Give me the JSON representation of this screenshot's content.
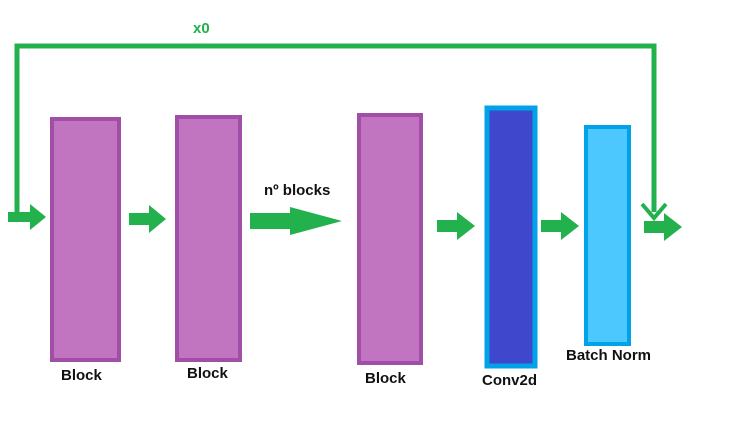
{
  "skip_connection": {
    "label": "x0",
    "color": "#22b14c"
  },
  "repeat_arrow": {
    "label": "nº blocks"
  },
  "blocks": [
    {
      "id": "block-1",
      "label": "Block",
      "fill": "#c175c1",
      "stroke": "#a04ea6"
    },
    {
      "id": "block-2",
      "label": "Block",
      "fill": "#c175c1",
      "stroke": "#a04ea6"
    },
    {
      "id": "block-n",
      "label": "Block",
      "fill": "#c175c1",
      "stroke": "#a04ea6"
    },
    {
      "id": "conv2d",
      "label": "Conv2d",
      "fill": "#3f48cc",
      "stroke": "#00a2e8"
    },
    {
      "id": "batch-norm",
      "label": "Batch Norm",
      "fill": "#4dc8fe",
      "stroke": "#00a2e8"
    }
  ],
  "arrow_color": "#22b14c"
}
